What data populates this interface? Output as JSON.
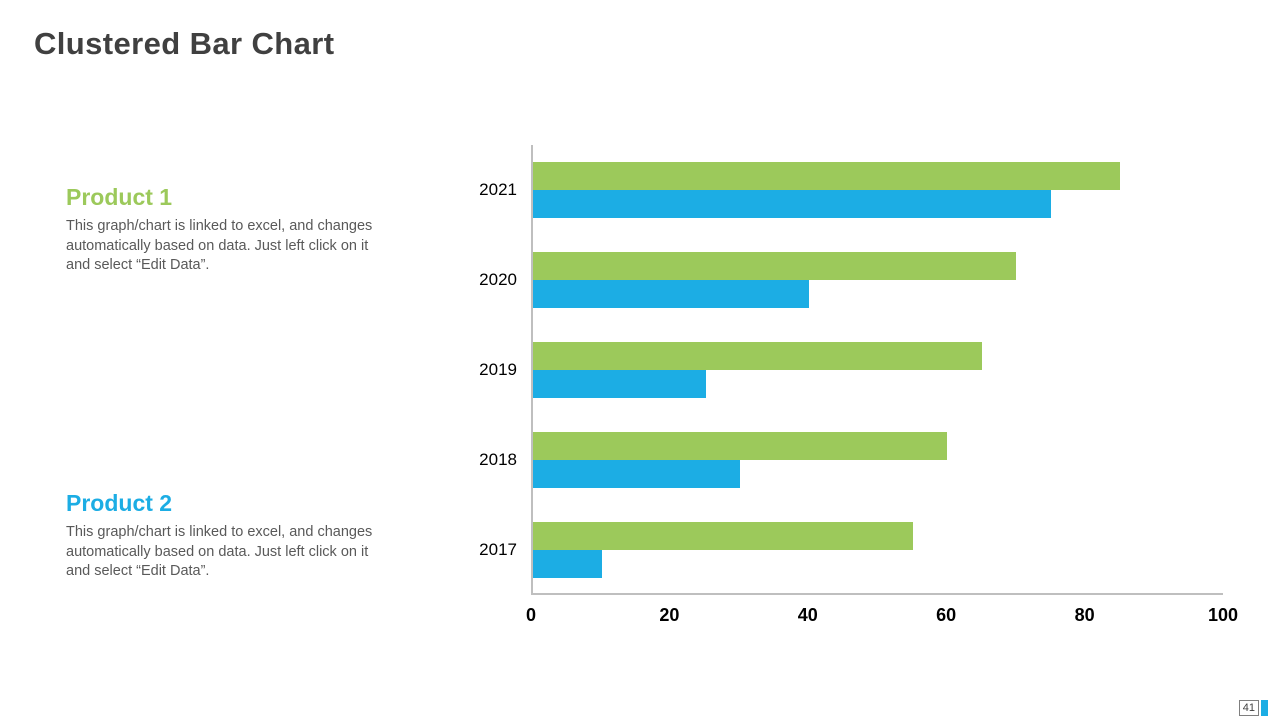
{
  "slide": {
    "title": "Clustered Bar Chart",
    "page_number": "41"
  },
  "legend": {
    "product1": {
      "title": "Product 1",
      "description": "This graph/chart is linked to excel, and changes automatically based on data. Just left click on it and select “Edit Data”.",
      "color": "#9CC95B"
    },
    "product2": {
      "title": "Product 2",
      "description": "This graph/chart is linked to excel, and changes automatically based on data. Just left click on it and select “Edit Data”.",
      "color": "#1CADE4"
    }
  },
  "chart_data": {
    "type": "bar",
    "orientation": "horizontal",
    "title": "",
    "categories": [
      "2021",
      "2020",
      "2019",
      "2018",
      "2017"
    ],
    "series": [
      {
        "name": "Product 1",
        "color": "#9CC95B",
        "values": [
          85,
          70,
          65,
          60,
          55
        ]
      },
      {
        "name": "Product 2",
        "color": "#1CADE4",
        "values": [
          75,
          40,
          25,
          30,
          10
        ]
      }
    ],
    "xlim": [
      0,
      100
    ],
    "x_ticks": [
      0,
      20,
      40,
      60,
      80,
      100
    ],
    "grid": false,
    "legend_position": "none",
    "axis_color": "#BFBFBF"
  }
}
